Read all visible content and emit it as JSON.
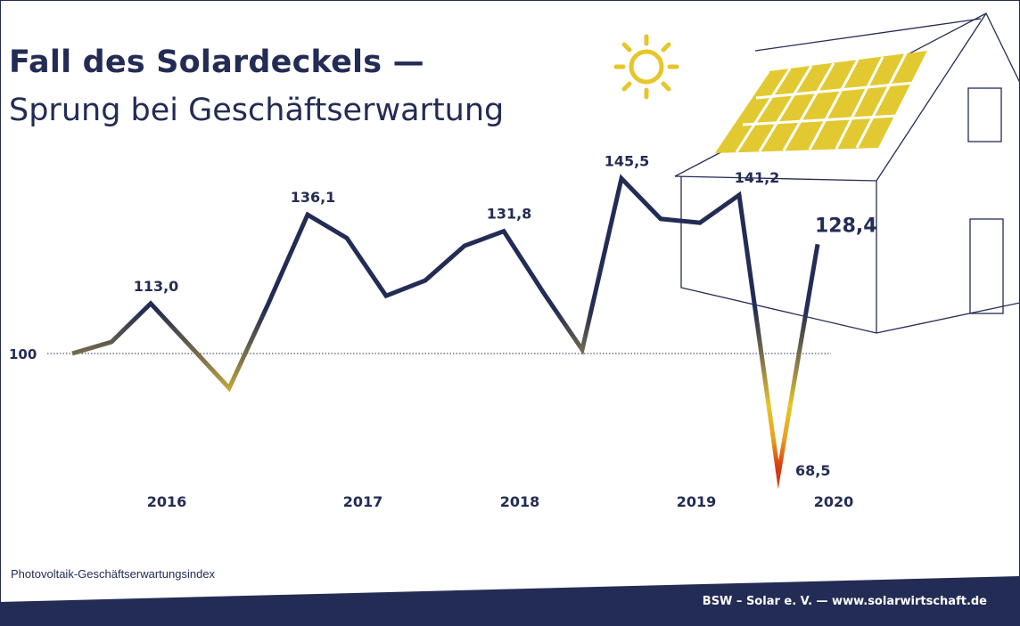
{
  "title": "Fall des Solardeckels —",
  "subtitle": "Sprung bei Geschäftserwartung",
  "source_note": "Photovoltaik-Geschäftserwartungsindex",
  "footer": "BSW – Solar e. V. — www.solarwirtschaft.de",
  "colors": {
    "navy": "#232c54",
    "sun_yellow": "#e6c62a",
    "panel_yellow": "#e2c931",
    "gradient_orange": "#e8a020",
    "gradient_red": "#d63a12"
  },
  "icons": [
    "sun-icon",
    "house-illustration",
    "solar-panel-icon"
  ],
  "chart_data": {
    "type": "line",
    "reference_label": "100",
    "reference_value": 100,
    "ylim": [
      60,
      155
    ],
    "x_labels": [
      {
        "label": "2016",
        "pos": 3
      },
      {
        "label": "2017",
        "pos": 8
      },
      {
        "label": "2018",
        "pos": 12
      },
      {
        "label": "2019",
        "pos": 16.5
      },
      {
        "label": "2020",
        "pos": 20
      }
    ],
    "values": [
      100,
      103,
      113.0,
      102,
      91,
      113,
      136.1,
      130,
      115,
      119,
      128,
      131.8,
      116,
      101,
      145.5,
      135,
      134,
      141.2,
      68.5,
      128.4
    ],
    "point_labels": [
      {
        "index": 2,
        "text": "113,0"
      },
      {
        "index": 6,
        "text": "136,1"
      },
      {
        "index": 11,
        "text": "131,8"
      },
      {
        "index": 14,
        "text": "145,5"
      },
      {
        "index": 17,
        "text": "141,2"
      },
      {
        "index": 18,
        "text": "68,5"
      },
      {
        "index": 19,
        "text": "128,4",
        "emphasis": true
      }
    ]
  }
}
